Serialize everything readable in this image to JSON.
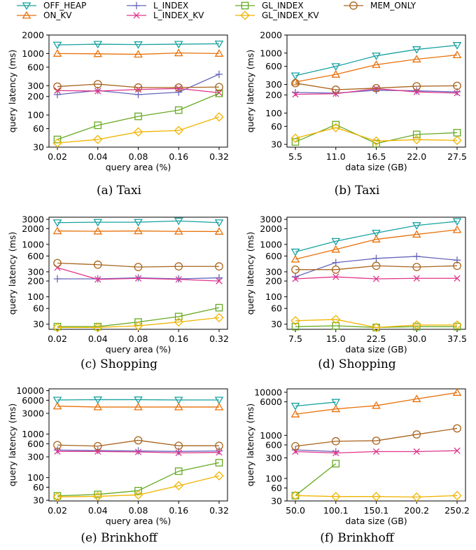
{
  "legend": [
    {
      "key": "off_heap",
      "label": "OFF_HEAP",
      "color": "#17a2a0",
      "marker": "triangle-down"
    },
    {
      "key": "on_kv",
      "label": "ON_KV",
      "color": "#e8710a",
      "marker": "triangle-up"
    },
    {
      "key": "l_index",
      "label": "L_INDEX",
      "color": "#6666bb",
      "marker": "plus"
    },
    {
      "key": "l_index_kv",
      "label": "L_INDEX_KV",
      "color": "#e0348c",
      "marker": "x"
    },
    {
      "key": "gl_index",
      "label": "GL_INDEX",
      "color": "#66aa22",
      "marker": "square"
    },
    {
      "key": "gl_index_kv",
      "label": "GL_INDEX_KV",
      "color": "#f0b400",
      "marker": "diamond"
    },
    {
      "key": "mem_only",
      "label": "MEM_ONLY",
      "color": "#a8641e",
      "marker": "circle"
    }
  ],
  "chart_data": [
    {
      "id": "a",
      "type": "line",
      "caption": "(a) Taxi",
      "xlabel": "query area (%)",
      "ylabel": "query latency (ms)",
      "yscale": "log",
      "categories": [
        "0.02",
        "0.04",
        "0.08",
        "0.16",
        "0.32"
      ],
      "ylim": [
        30,
        2000
      ],
      "yticks": [
        30,
        60,
        100,
        200,
        300,
        600,
        1000,
        2000
      ],
      "series": [
        {
          "key": "off_heap",
          "name": "OFF_HEAP",
          "values": [
            1380,
            1420,
            1400,
            1420,
            1440
          ]
        },
        {
          "key": "on_kv",
          "name": "ON_KV",
          "values": [
            1000,
            990,
            970,
            1020,
            1000
          ]
        },
        {
          "key": "l_index",
          "name": "L_INDEX",
          "values": [
            215,
            250,
            215,
            235,
            460
          ]
        },
        {
          "key": "l_index_kv",
          "name": "L_INDEX_KV",
          "values": [
            250,
            245,
            260,
            270,
            230
          ]
        },
        {
          "key": "gl_index",
          "name": "GL_INDEX",
          "values": [
            40,
            68,
            95,
            120,
            225
          ]
        },
        {
          "key": "gl_index_kv",
          "name": "GL_INDEX_KV",
          "values": [
            35,
            40,
            53,
            56,
            93
          ]
        },
        {
          "key": "mem_only",
          "name": "MEM_ONLY",
          "values": [
            290,
            318,
            280,
            280,
            285
          ]
        }
      ]
    },
    {
      "id": "b",
      "type": "line",
      "caption": "(b) Taxi",
      "xlabel": "data size (GB)",
      "ylabel": "query latency (ms)",
      "yscale": "log",
      "categories": [
        "5.5",
        "11.0",
        "16.5",
        "22.0",
        "27.5"
      ],
      "ylim": [
        27,
        2000
      ],
      "yticks": [
        30,
        60,
        100,
        200,
        300,
        600,
        1000,
        2000
      ],
      "series": [
        {
          "key": "off_heap",
          "name": "OFF_HEAP",
          "values": [
            420,
            600,
            900,
            1150,
            1350
          ]
        },
        {
          "key": "on_kv",
          "name": "ON_KV",
          "values": [
            330,
            440,
            640,
            790,
            930
          ]
        },
        {
          "key": "l_index",
          "name": "L_INDEX",
          "values": [
            220,
            215,
            240,
            235,
            225
          ]
        },
        {
          "key": "l_index_kv",
          "name": "L_INDEX_KV",
          "values": [
            205,
            210,
            255,
            225,
            215
          ]
        },
        {
          "key": "gl_index",
          "name": "GL_INDEX",
          "values": [
            33,
            64,
            31,
            44,
            47
          ]
        },
        {
          "key": "gl_index_kv",
          "name": "GL_INDEX_KV",
          "values": [
            38,
            57,
            34,
            36,
            35
          ]
        },
        {
          "key": "mem_only",
          "name": "MEM_ONLY",
          "values": [
            315,
            245,
            260,
            280,
            285
          ]
        }
      ]
    },
    {
      "id": "c",
      "type": "line",
      "caption": "(c) Shopping",
      "xlabel": "query area (%)",
      "ylabel": "query latency (ms)",
      "yscale": "log",
      "categories": [
        "0.02",
        "0.04",
        "0.08",
        "0.16",
        "0.32"
      ],
      "ylim": [
        24,
        3300
      ],
      "yticks": [
        30,
        60,
        100,
        200,
        300,
        600,
        1000,
        2000,
        3000
      ],
      "series": [
        {
          "key": "off_heap",
          "name": "OFF_HEAP",
          "values": [
            2600,
            2650,
            2650,
            2800,
            2600
          ]
        },
        {
          "key": "on_kv",
          "name": "ON_KV",
          "values": [
            1800,
            1780,
            1800,
            1770,
            1760
          ]
        },
        {
          "key": "l_index",
          "name": "L_INDEX",
          "values": [
            220,
            220,
            230,
            220,
            230
          ]
        },
        {
          "key": "l_index_kv",
          "name": "L_INDEX_KV",
          "values": [
            360,
            215,
            225,
            215,
            200
          ]
        },
        {
          "key": "gl_index",
          "name": "GL_INDEX",
          "values": [
            27,
            27,
            33,
            42,
            62
          ]
        },
        {
          "key": "gl_index_kv",
          "name": "GL_INDEX_KV",
          "values": [
            26,
            26,
            28,
            33,
            40
          ]
        },
        {
          "key": "mem_only",
          "name": "MEM_ONLY",
          "values": [
            440,
            410,
            370,
            380,
            380
          ]
        }
      ]
    },
    {
      "id": "d",
      "type": "line",
      "caption": "(d) Shopping",
      "xlabel": "data size (GB)",
      "ylabel": "query latency (ms)",
      "yscale": "log",
      "categories": [
        "7.5",
        "15.0",
        "22.5",
        "30.0",
        "37.5"
      ],
      "ylim": [
        24,
        3300
      ],
      "yticks": [
        30,
        60,
        100,
        200,
        300,
        600,
        1000,
        2000,
        3000
      ],
      "series": [
        {
          "key": "off_heap",
          "name": "OFF_HEAP",
          "values": [
            720,
            1150,
            1650,
            2300,
            2750
          ]
        },
        {
          "key": "on_kv",
          "name": "ON_KV",
          "values": [
            520,
            800,
            1250,
            1550,
            1900
          ]
        },
        {
          "key": "l_index",
          "name": "L_INDEX",
          "values": [
            240,
            450,
            540,
            590,
            500
          ]
        },
        {
          "key": "l_index_kv",
          "name": "L_INDEX_KV",
          "values": [
            220,
            240,
            220,
            225,
            225
          ]
        },
        {
          "key": "gl_index",
          "name": "GL_INDEX",
          "values": [
            27,
            28,
            26,
            27,
            27
          ]
        },
        {
          "key": "gl_index_kv",
          "name": "GL_INDEX_KV",
          "values": [
            35,
            37,
            26,
            29,
            29
          ]
        },
        {
          "key": "mem_only",
          "name": "MEM_ONLY",
          "values": [
            330,
            330,
            390,
            370,
            390
          ]
        }
      ]
    },
    {
      "id": "e",
      "type": "line",
      "caption": "(e) Brinkhoff",
      "xlabel": "query area (%)",
      "ylabel": "query latency (ms)",
      "yscale": "log",
      "categories": [
        "0.02",
        "0.04",
        "0.08",
        "0.16",
        "0.32"
      ],
      "ylim": [
        29,
        11000
      ],
      "yticks": [
        30,
        60,
        100,
        300,
        600,
        1000,
        3000,
        6000,
        10000
      ],
      "series": [
        {
          "key": "off_heap",
          "name": "OFF_HEAP",
          "values": [
            6100,
            6200,
            6200,
            6100,
            6100
          ]
        },
        {
          "key": "on_kv",
          "name": "ON_KV",
          "values": [
            4400,
            4200,
            4200,
            4200,
            4200
          ]
        },
        {
          "key": "l_index",
          "name": "L_INDEX",
          "values": [
            430,
            420,
            410,
            400,
            410
          ]
        },
        {
          "key": "l_index_kv",
          "name": "L_INDEX_KV",
          "values": [
            400,
            400,
            390,
            370,
            380
          ]
        },
        {
          "key": "gl_index",
          "name": "GL_INDEX",
          "values": [
            38,
            41,
            50,
            140,
            220
          ]
        },
        {
          "key": "gl_index_kv",
          "name": "GL_INDEX_KV",
          "values": [
            36,
            37,
            40,
            65,
            110
          ]
        },
        {
          "key": "mem_only",
          "name": "MEM_ONLY",
          "values": [
            560,
            530,
            720,
            540,
            540
          ]
        }
      ]
    },
    {
      "id": "f",
      "type": "line",
      "caption": "(f) Brinkhoff",
      "xlabel": "data size (GB)",
      "ylabel": "query latency (ms)",
      "yscale": "log",
      "categories": [
        "50.0",
        "100.1",
        "150.1",
        "200.2",
        "250.2"
      ],
      "ylim": [
        30,
        12000
      ],
      "yticks": [
        30,
        60,
        100,
        300,
        600,
        1000,
        6000,
        10000
      ],
      "series": [
        {
          "key": "off_heap",
          "name": "OFF_HEAP",
          "values": [
            4800,
            5900,
            null,
            null,
            null
          ]
        },
        {
          "key": "on_kv",
          "name": "ON_KV",
          "values": [
            3100,
            4100,
            4900,
            7000,
            9800
          ]
        },
        {
          "key": "l_index",
          "name": "L_INDEX",
          "values": [
            460,
            420,
            null,
            null,
            null
          ]
        },
        {
          "key": "l_index_kv",
          "name": "L_INDEX_KV",
          "values": [
            420,
            390,
            420,
            420,
            440
          ]
        },
        {
          "key": "gl_index",
          "name": "GL_INDEX",
          "values": [
            40,
            220,
            null,
            null,
            null
          ]
        },
        {
          "key": "gl_index_kv",
          "name": "GL_INDEX_KV",
          "values": [
            40,
            38,
            38,
            37,
            40
          ]
        },
        {
          "key": "mem_only",
          "name": "MEM_ONLY",
          "values": [
            560,
            730,
            750,
            1050,
            1450
          ]
        }
      ]
    }
  ]
}
